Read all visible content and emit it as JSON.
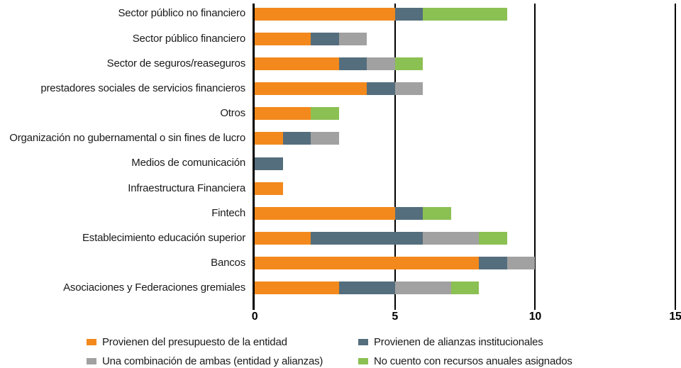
{
  "chart_data": {
    "type": "bar",
    "orientation": "horizontal",
    "stacked": true,
    "title": "",
    "categories": [
      "Sector público no financiero",
      "Sector público financiero",
      "Sector de seguros/reaseguros",
      "prestadores sociales de servicios financieros",
      "Otros",
      "Organización no gubernamental o sin fines de lucro",
      "Medios de comunicación",
      "Infraestructura Financiera",
      "Fintech",
      "Establecimiento educación superior",
      "Bancos",
      "Asociaciones y Federaciones gremiales"
    ],
    "series": [
      {
        "name": "Provienen del presupuesto de la entidad",
        "color": "#F3891D",
        "values": [
          5,
          2,
          3,
          4,
          2,
          1,
          0,
          1,
          5,
          2,
          8,
          3
        ]
      },
      {
        "name": "Provienen de alianzas institucionales",
        "color": "#546E7D",
        "values": [
          1,
          1,
          1,
          1,
          0,
          1,
          1,
          0,
          1,
          4,
          1,
          2
        ]
      },
      {
        "name": "Una combinación de ambas (entidad y alianzas)",
        "color": "#A1A1A1",
        "values": [
          0,
          1,
          1,
          1,
          0,
          1,
          0,
          0,
          0,
          2,
          1,
          2
        ]
      },
      {
        "name": "No cuento con recursos anuales asignados",
        "color": "#8BC053",
        "values": [
          3,
          0,
          1,
          0,
          1,
          0,
          0,
          0,
          1,
          1,
          0,
          1
        ]
      }
    ],
    "x_ticks": [
      "0",
      "5",
      "10",
      "15"
    ],
    "x_tick_values": [
      0,
      5,
      10,
      15
    ],
    "xlim": [
      0,
      15
    ],
    "grid": true,
    "axis_color": "#000000",
    "legend_position": "bottom"
  }
}
